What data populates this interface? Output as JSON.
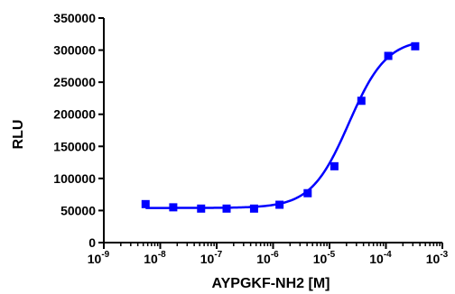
{
  "chart_data": {
    "type": "scatter",
    "title": "",
    "xlabel": "AYPGKF-NH2 [M]",
    "ylabel": "RLU",
    "x_scale": "log",
    "xlim": [
      1e-09,
      0.001
    ],
    "ylim": [
      0,
      350000
    ],
    "x_ticks": [
      {
        "value": 1e-09,
        "base": "10",
        "exp": "-9"
      },
      {
        "value": 1e-08,
        "base": "10",
        "exp": "-8"
      },
      {
        "value": 1e-07,
        "base": "10",
        "exp": "-7"
      },
      {
        "value": 1e-06,
        "base": "10",
        "exp": "-6"
      },
      {
        "value": 1e-05,
        "base": "10",
        "exp": "-5"
      },
      {
        "value": 0.0001,
        "base": "10",
        "exp": "-4"
      },
      {
        "value": 0.001,
        "base": "10",
        "exp": "-3"
      }
    ],
    "y_ticks": [
      {
        "value": 0,
        "label": "0"
      },
      {
        "value": 50000,
        "label": "50000"
      },
      {
        "value": 100000,
        "label": "100000"
      },
      {
        "value": 150000,
        "label": "150000"
      },
      {
        "value": 200000,
        "label": "200000"
      },
      {
        "value": 250000,
        "label": "250000"
      },
      {
        "value": 300000,
        "label": "300000"
      },
      {
        "value": 350000,
        "label": "350000"
      }
    ],
    "series": [
      {
        "color": "#0000ff",
        "marker": "square",
        "points": [
          {
            "x": 5.5e-09,
            "y": 60000
          },
          {
            "x": 1.7e-08,
            "y": 55000
          },
          {
            "x": 5.3e-08,
            "y": 53000
          },
          {
            "x": 1.5e-07,
            "y": 53000
          },
          {
            "x": 4.6e-07,
            "y": 53000
          },
          {
            "x": 1.3e-06,
            "y": 59000
          },
          {
            "x": 4.1e-06,
            "y": 77000
          },
          {
            "x": 1.22e-05,
            "y": 119000
          },
          {
            "x": 3.67e-05,
            "y": 221000
          },
          {
            "x": 0.00011,
            "y": 291000
          },
          {
            "x": 0.00033,
            "y": 306000
          }
        ],
        "fit": {
          "model": "sigmoidal dose-response",
          "bottom": 54000,
          "top": 318000,
          "ec50": 2.2e-05,
          "hill_slope": 1.3
        }
      }
    ]
  }
}
